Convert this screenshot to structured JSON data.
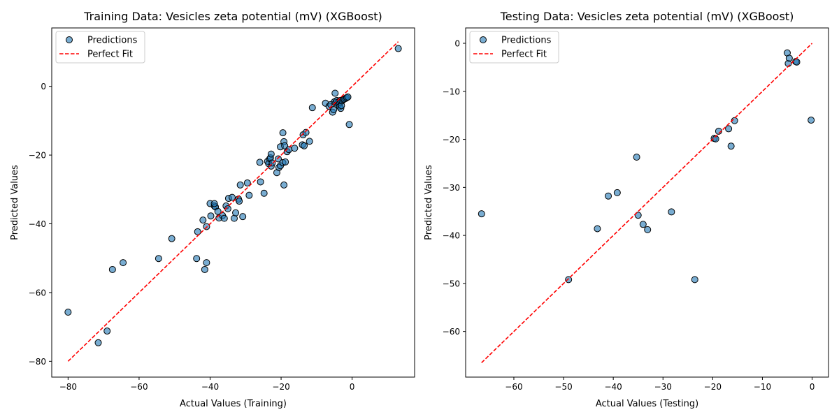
{
  "chart_data": [
    {
      "type": "scatter",
      "title": "Training Data: Vesicles zeta potential (mV) (XGBoost)",
      "xlabel": "Actual Values (Training)",
      "ylabel": "Predicted Values",
      "xlim": [
        -84.6,
        17.6
      ],
      "ylim": [
        -84.6,
        17.0
      ],
      "xticks": [
        -80,
        -60,
        -40,
        -20,
        0
      ],
      "yticks": [
        -80,
        -60,
        -40,
        -20,
        0
      ],
      "xtick_labels": [
        "−80",
        "−60",
        "−40",
        "−20",
        "0"
      ],
      "ytick_labels": [
        "−80",
        "−60",
        "−40",
        "−20",
        "0"
      ],
      "grid": false,
      "legend": {
        "placement": "top-left",
        "entries": [
          "Predictions",
          "Perfect Fit"
        ]
      },
      "series": [
        {
          "name": "Predictions",
          "marker_color": "#1f77b4",
          "points": [
            [
              -80,
              -65.7
            ],
            [
              -71.5,
              -74.6
            ],
            [
              -69,
              -71.2
            ],
            [
              -67.5,
              -53.3
            ],
            [
              -64.5,
              -51.3
            ],
            [
              -54.5,
              -50.1
            ],
            [
              -50.8,
              -44.3
            ],
            [
              -43.8,
              -50.1
            ],
            [
              -41.5,
              -53.3
            ],
            [
              -41,
              -51.3
            ],
            [
              -43.5,
              -42.3
            ],
            [
              -42,
              -38.9
            ],
            [
              -41,
              -40.8
            ],
            [
              -40,
              -34.1
            ],
            [
              -39.8,
              -37.7
            ],
            [
              -38.8,
              -34.8
            ],
            [
              -38.5,
              -35.1
            ],
            [
              -38.8,
              -34.1
            ],
            [
              -37.8,
              -36.4
            ],
            [
              -37.5,
              -38.3
            ],
            [
              -36.5,
              -37.6
            ],
            [
              -36,
              -38.4
            ],
            [
              -35.5,
              -34.8
            ],
            [
              -35,
              -35.6
            ],
            [
              -34.8,
              -32.6
            ],
            [
              -33.8,
              -32.3
            ],
            [
              -33.2,
              -38.4
            ],
            [
              -32.8,
              -36.8
            ],
            [
              -32,
              -32.8
            ],
            [
              -31.8,
              -33.4
            ],
            [
              -31.5,
              -28.7
            ],
            [
              -30.8,
              -37.9
            ],
            [
              -29.5,
              -28.1
            ],
            [
              -29,
              -31.7
            ],
            [
              -26,
              -22.1
            ],
            [
              -25.8,
              -27.8
            ],
            [
              -24.8,
              -31.1
            ],
            [
              -23.8,
              -21.8
            ],
            [
              -23.5,
              -22.5
            ],
            [
              -23.2,
              -21.1
            ],
            [
              -23,
              -20.8
            ],
            [
              -22.8,
              -19.7
            ],
            [
              -22.8,
              -23.2
            ],
            [
              -22.5,
              -22.3
            ],
            [
              -21.2,
              -25.1
            ],
            [
              -20.8,
              -21.1
            ],
            [
              -20.6,
              -23.6
            ],
            [
              -20.2,
              -23.1
            ],
            [
              -20.2,
              -17.6
            ],
            [
              -19.5,
              -22.2
            ],
            [
              -19.5,
              -13.5
            ],
            [
              -19.2,
              -16.1
            ],
            [
              -19,
              -17.3
            ],
            [
              -18.8,
              -22
            ],
            [
              -19.2,
              -28.7
            ],
            [
              -18.3,
              -19
            ],
            [
              -17.8,
              -18.4
            ],
            [
              -16.2,
              -18
            ],
            [
              -14,
              -17
            ],
            [
              -13.8,
              -14.1
            ],
            [
              -13.5,
              -17.3
            ],
            [
              -13,
              -13.4
            ],
            [
              -12,
              -16
            ],
            [
              -11.2,
              -6.2
            ],
            [
              -7.5,
              -4.9
            ],
            [
              -6.5,
              -5.8
            ],
            [
              -6,
              -5.3
            ],
            [
              -5.5,
              -7.5
            ],
            [
              -5.2,
              -6.8
            ],
            [
              -5,
              -4.5
            ],
            [
              -4.8,
              -2
            ],
            [
              -4.6,
              -4.7
            ],
            [
              -4.3,
              -4.1
            ],
            [
              -4,
              -5.5
            ],
            [
              -3.7,
              -4.4
            ],
            [
              -3.6,
              -5.1
            ],
            [
              -3.5,
              -5.9
            ],
            [
              -3.3,
              -4.1
            ],
            [
              -3.2,
              -6.4
            ],
            [
              -3,
              -5.6
            ],
            [
              -2.8,
              -4.2
            ],
            [
              -2.5,
              -3.8
            ],
            [
              -2.2,
              -3.7
            ],
            [
              -1.8,
              -3.5
            ],
            [
              -1.5,
              -3.3
            ],
            [
              -1.2,
              -3.1
            ],
            [
              -0.8,
              -11.1
            ],
            [
              13,
              11
            ]
          ]
        },
        {
          "name": "Perfect Fit",
          "line_color": "#ff0000",
          "line_style": "dashed",
          "points": [
            [
              -80,
              -80
            ],
            [
              13,
              13
            ]
          ]
        }
      ]
    },
    {
      "type": "scatter",
      "title": "Testing Data: Vesicles zeta potential (mV) (XGBoost)",
      "xlabel": "Actual Values (Testing)",
      "ylabel": "Predicted Values",
      "xlim": [
        -69.7,
        3.3
      ],
      "ylim": [
        -69.5,
        3.2
      ],
      "xticks": [
        -60,
        -50,
        -40,
        -30,
        -20,
        -10,
        0
      ],
      "yticks": [
        -60,
        -50,
        -40,
        -30,
        -20,
        -10,
        0
      ],
      "xtick_labels": [
        "−60",
        "−50",
        "−40",
        "−30",
        "−20",
        "−10",
        "0"
      ],
      "ytick_labels": [
        "−60",
        "−50",
        "−40",
        "−30",
        "−20",
        "−10",
        "0"
      ],
      "grid": false,
      "legend": {
        "placement": "top-left",
        "entries": [
          "Predictions",
          "Perfect Fit"
        ]
      },
      "series": [
        {
          "name": "Predictions",
          "marker_color": "#1f77b4",
          "points": [
            [
              -66.5,
              -35.5
            ],
            [
              -49,
              -49.2
            ],
            [
              -43.2,
              -38.6
            ],
            [
              -41,
              -31.8
            ],
            [
              -39.2,
              -31.1
            ],
            [
              -35.3,
              -23.7
            ],
            [
              -35,
              -35.8
            ],
            [
              -34,
              -37.7
            ],
            [
              -33.1,
              -38.8
            ],
            [
              -28.3,
              -35.1
            ],
            [
              -23.6,
              -49.2
            ],
            [
              -19.7,
              -19.8
            ],
            [
              -19.4,
              -19.9
            ],
            [
              -18.8,
              -18.3
            ],
            [
              -16.8,
              -17.8
            ],
            [
              -16.3,
              -21.4
            ],
            [
              -15.6,
              -16.1
            ],
            [
              -5,
              -2
            ],
            [
              -4.8,
              -4.2
            ],
            [
              -4.6,
              -3.1
            ],
            [
              -3.3,
              -3.8
            ],
            [
              -3.1,
              -3.9
            ],
            [
              -0.2,
              -16
            ]
          ]
        },
        {
          "name": "Perfect Fit",
          "line_color": "#ff0000",
          "line_style": "dashed",
          "points": [
            [
              -66.5,
              -66.5
            ],
            [
              0,
              0
            ]
          ]
        }
      ]
    }
  ]
}
